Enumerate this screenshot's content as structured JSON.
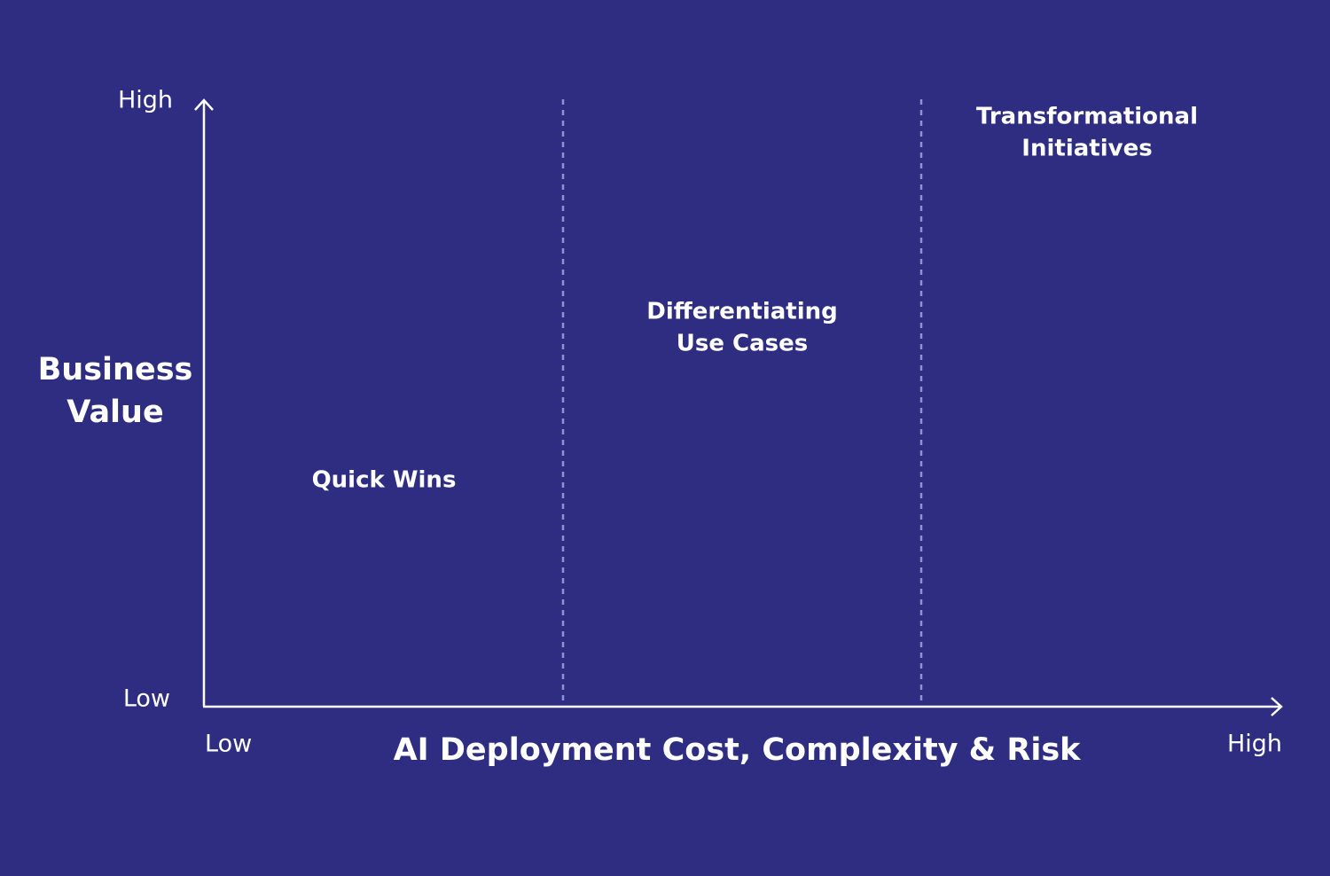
{
  "y_axis": {
    "title": [
      "Business",
      "Value"
    ],
    "high": "High",
    "low": "Low"
  },
  "x_axis": {
    "title": "AI Deployment Cost, Complexity & Risk",
    "low": "Low",
    "high": "High"
  },
  "regions": [
    {
      "label": [
        "Quick Wins"
      ]
    },
    {
      "label": [
        "Differentiating",
        "Use Cases"
      ]
    },
    {
      "label": [
        "Transformational",
        "Initiatives"
      ]
    }
  ]
}
